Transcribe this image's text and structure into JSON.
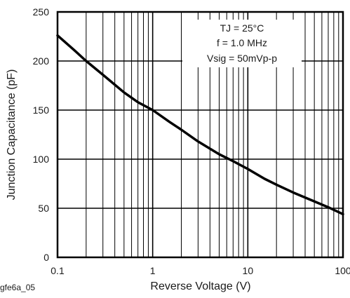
{
  "figure_id": "gfe6a_05",
  "chart_data": {
    "type": "line",
    "xscale": "log",
    "xlim": [
      0.1,
      100
    ],
    "ylim": [
      0,
      250
    ],
    "xlabel": "Reverse Voltage (V)",
    "ylabel": "Junction Capacitance (pF)",
    "x_ticks": [
      "0.1",
      "1",
      "10",
      "100"
    ],
    "y_ticks": [
      "0",
      "50",
      "100",
      "150",
      "200",
      "250"
    ],
    "grid": true,
    "conditions": [
      "TJ = 25°C",
      "f = 1.0 MHz",
      "Vsig = 50mVp-p"
    ],
    "series": [
      {
        "x": [
          0.1,
          0.15,
          0.2,
          0.3,
          0.5,
          0.7,
          1,
          1.5,
          2,
          3,
          5,
          7,
          10,
          15,
          20,
          30,
          50,
          70,
          100
        ],
        "y": [
          226,
          211,
          200,
          186,
          168,
          158,
          150,
          138,
          130,
          118,
          105,
          98,
          90,
          80,
          74,
          66,
          57,
          51,
          44
        ]
      }
    ],
    "line_color": "#000000"
  }
}
